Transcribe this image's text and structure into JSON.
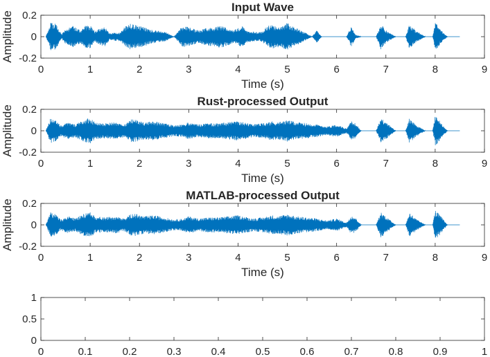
{
  "chart_data": [
    {
      "type": "line",
      "title": "Input Wave",
      "xlabel": "Time (s)",
      "ylabel": "Amplitude",
      "xlim": [
        0,
        9
      ],
      "ylim": [
        -0.2,
        0.2
      ],
      "xticks": [
        "0",
        "1",
        "2",
        "3",
        "4",
        "5",
        "6",
        "7",
        "8",
        "9"
      ],
      "yticks": [
        "-0.2",
        "0",
        "0.2"
      ],
      "series_color": "#0072BD",
      "signal_end_s": 8.5,
      "envelope": {
        "t": [
          0.1,
          0.2,
          0.3,
          0.42,
          0.5,
          0.65,
          0.8,
          0.9,
          1.0,
          1.1,
          1.2,
          1.3,
          1.4,
          1.5,
          1.6,
          1.7,
          1.8,
          1.9,
          2.0,
          2.1,
          2.2,
          2.3,
          2.45,
          2.55,
          2.7,
          2.85,
          2.95,
          3.05,
          3.2,
          3.35,
          3.5,
          3.6,
          3.7,
          3.8,
          3.9,
          4.0,
          4.1,
          4.2,
          4.3,
          4.4,
          4.5,
          4.6,
          4.7,
          4.8,
          4.9,
          5.0,
          5.1,
          5.2,
          5.3,
          5.4,
          5.5,
          5.6,
          5.7,
          5.8,
          5.9,
          6.0,
          6.2,
          6.3,
          6.38,
          6.5,
          6.8,
          6.9,
          7.0,
          7.2,
          7.4,
          7.48,
          7.6,
          7.8,
          7.95,
          8.0,
          8.1,
          8.25,
          8.5
        ],
        "amp": [
          0.0,
          0.13,
          0.12,
          0.02,
          0.07,
          0.1,
          0.06,
          0.1,
          0.11,
          0.05,
          0.08,
          0.09,
          0.03,
          0.04,
          0.04,
          0.09,
          0.12,
          0.11,
          0.1,
          0.09,
          0.07,
          0.06,
          0.05,
          0.04,
          0.0,
          0.09,
          0.1,
          0.08,
          0.06,
          0.08,
          0.09,
          0.1,
          0.1,
          0.08,
          0.06,
          0.08,
          0.1,
          0.05,
          0.05,
          0.04,
          0.05,
          0.1,
          0.11,
          0.1,
          0.11,
          0.13,
          0.1,
          0.08,
          0.05,
          0.03,
          0.0,
          0.06,
          0.0,
          0.0,
          0.0,
          0.0,
          0.0,
          0.1,
          0.02,
          0.0,
          0.0,
          0.12,
          0.06,
          0.0,
          0.0,
          0.12,
          0.06,
          0.0,
          0.0,
          0.14,
          0.07,
          0.0,
          0.0
        ]
      }
    },
    {
      "type": "line",
      "title": "Rust-processed Output",
      "xlabel": "Time (s)",
      "ylabel": "Amplitude",
      "xlim": [
        0,
        9
      ],
      "ylim": [
        -0.2,
        0.2
      ],
      "xticks": [
        "0",
        "1",
        "2",
        "3",
        "4",
        "5",
        "6",
        "7",
        "8",
        "9"
      ],
      "yticks": [
        "-0.2",
        "0",
        "0.2"
      ],
      "series_color": "#0072BD",
      "signal_end_s": 8.5,
      "envelope": {
        "t": [
          0.1,
          0.2,
          0.3,
          0.4,
          0.55,
          0.7,
          0.9,
          1.0,
          1.1,
          1.3,
          1.5,
          1.7,
          1.85,
          1.95,
          2.1,
          2.3,
          2.5,
          2.7,
          2.9,
          3.0,
          3.2,
          3.4,
          3.6,
          3.8,
          4.0,
          4.1,
          4.3,
          4.5,
          4.7,
          4.8,
          5.0,
          5.2,
          5.4,
          5.6,
          5.8,
          5.9,
          6.0,
          6.1,
          6.2,
          6.3,
          6.38,
          6.5,
          6.8,
          6.9,
          7.0,
          7.2,
          7.4,
          7.48,
          7.6,
          7.8,
          7.95,
          8.0,
          8.1,
          8.25,
          8.5
        ],
        "amp": [
          0.0,
          0.12,
          0.1,
          0.05,
          0.08,
          0.06,
          0.11,
          0.12,
          0.08,
          0.07,
          0.08,
          0.06,
          0.11,
          0.1,
          0.08,
          0.09,
          0.07,
          0.05,
          0.06,
          0.08,
          0.06,
          0.07,
          0.07,
          0.08,
          0.09,
          0.08,
          0.06,
          0.07,
          0.09,
          0.08,
          0.1,
          0.08,
          0.07,
          0.06,
          0.04,
          0.05,
          0.06,
          0.04,
          0.02,
          0.09,
          0.07,
          0.0,
          0.0,
          0.12,
          0.08,
          0.0,
          0.0,
          0.12,
          0.06,
          0.0,
          0.0,
          0.14,
          0.09,
          0.0,
          0.0
        ]
      }
    },
    {
      "type": "line",
      "title": "MATLAB-processed Output",
      "xlabel": "Time (s)",
      "ylabel": "Amplitude",
      "xlim": [
        0,
        9
      ],
      "ylim": [
        -0.2,
        0.2
      ],
      "xticks": [
        "0",
        "1",
        "2",
        "3",
        "4",
        "5",
        "6",
        "7",
        "8",
        "9"
      ],
      "yticks": [
        "-0.2",
        "0",
        "0.2"
      ],
      "series_color": "#0072BD",
      "signal_end_s": 8.5,
      "envelope": {
        "t": [
          0.1,
          0.2,
          0.3,
          0.4,
          0.55,
          0.7,
          0.9,
          1.0,
          1.1,
          1.3,
          1.5,
          1.7,
          1.85,
          1.95,
          2.1,
          2.3,
          2.5,
          2.7,
          2.9,
          3.0,
          3.2,
          3.4,
          3.6,
          3.8,
          4.0,
          4.1,
          4.3,
          4.5,
          4.7,
          4.8,
          5.0,
          5.2,
          5.4,
          5.6,
          5.8,
          5.9,
          6.0,
          6.1,
          6.2,
          6.3,
          6.38,
          6.5,
          6.8,
          6.9,
          7.0,
          7.2,
          7.4,
          7.48,
          7.6,
          7.8,
          7.95,
          8.0,
          8.1,
          8.25,
          8.5
        ],
        "amp": [
          0.0,
          0.12,
          0.1,
          0.05,
          0.08,
          0.06,
          0.11,
          0.12,
          0.08,
          0.07,
          0.08,
          0.06,
          0.11,
          0.1,
          0.08,
          0.09,
          0.07,
          0.05,
          0.06,
          0.08,
          0.06,
          0.07,
          0.07,
          0.08,
          0.09,
          0.08,
          0.06,
          0.07,
          0.09,
          0.08,
          0.1,
          0.08,
          0.07,
          0.06,
          0.04,
          0.05,
          0.06,
          0.04,
          0.02,
          0.09,
          0.07,
          0.0,
          0.0,
          0.12,
          0.08,
          0.0,
          0.0,
          0.12,
          0.06,
          0.0,
          0.0,
          0.14,
          0.09,
          0.0,
          0.0
        ]
      }
    },
    {
      "type": "line",
      "title": "",
      "xlabel": "",
      "ylabel": "",
      "xlim": [
        0,
        1
      ],
      "ylim": [
        0,
        1
      ],
      "xticks": [
        "0",
        "0.1",
        "0.2",
        "0.3",
        "0.4",
        "0.5",
        "0.6",
        "0.7",
        "0.8",
        "0.9",
        "1"
      ],
      "yticks": [
        "0",
        "0.5",
        "1"
      ],
      "series_color": "#0072BD",
      "envelope": null
    }
  ]
}
